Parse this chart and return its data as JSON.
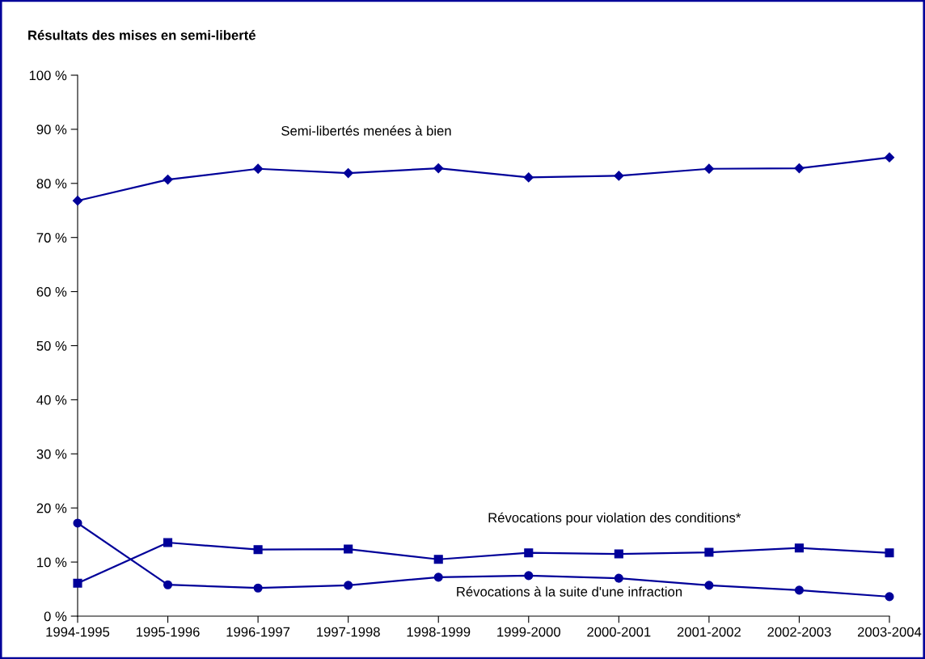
{
  "chart_data": {
    "type": "line",
    "title": "Résultats des mises en semi-liberté",
    "categories": [
      "1994-1995",
      "1995-1996",
      "1996-1997",
      "1997-1998",
      "1998-1999",
      "1999-2000",
      "2000-2001",
      "2001-2002",
      "2002-2003",
      "2003-2004"
    ],
    "series": [
      {
        "name": "Semi-libertés menées à bien",
        "color": "#000099",
        "marker": "diamond",
        "values": [
          76.8,
          80.7,
          82.7,
          81.9,
          82.8,
          81.1,
          81.4,
          82.7,
          82.8,
          84.8
        ]
      },
      {
        "name": "Révocations pour violation des conditions*",
        "color": "#000099",
        "marker": "square",
        "values": [
          6.1,
          13.6,
          12.3,
          12.4,
          10.5,
          11.7,
          11.5,
          11.8,
          12.6,
          11.7
        ]
      },
      {
        "name": "Révocations à la suite d'une infraction",
        "color": "#000099",
        "marker": "circle",
        "values": [
          17.2,
          5.8,
          5.2,
          5.7,
          7.2,
          7.5,
          7.0,
          5.7,
          4.8,
          3.6
        ]
      }
    ],
    "ylim": [
      0,
      100
    ],
    "yticks": [
      {
        "value": 0,
        "label": "0 %"
      },
      {
        "value": 10,
        "label": "10 %"
      },
      {
        "value": 20,
        "label": "20 %"
      },
      {
        "value": 30,
        "label": "30 %"
      },
      {
        "value": 40,
        "label": "40 %"
      },
      {
        "value": 50,
        "label": "50 %"
      },
      {
        "value": 60,
        "label": "60 %"
      },
      {
        "value": 70,
        "label": "70 %"
      },
      {
        "value": 80,
        "label": "80 %"
      },
      {
        "value": 90,
        "label": "90 %"
      },
      {
        "value": 100,
        "label": "100 %"
      }
    ],
    "grid": false,
    "legend": false
  }
}
